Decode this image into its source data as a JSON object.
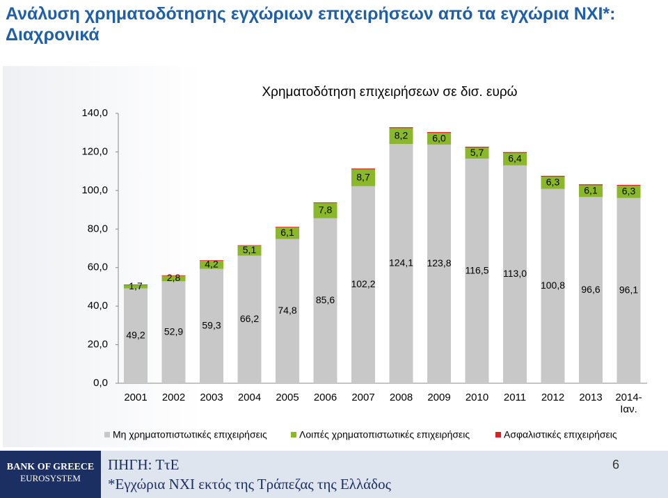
{
  "slide": {
    "title": [
      "Ανάλυση χρηματοδότησης εγχώριων επιχειρήσεων από τα εγχώρια ΝΧΙ*:",
      "Διαχρονικά"
    ]
  },
  "footer": {
    "bank": "BANK OF GREECE",
    "system": "EUROSYSTEM",
    "source": "ΠΗΓΗ: ΤτΕ",
    "note": "*Εγχώρια ΝΧΙ εκτός της Τράπεζας της Ελλάδος",
    "page": "6"
  },
  "chart_data": {
    "type": "stacked-bar",
    "title": "Χρηματοδότηση επιχειρήσεων σε δισ. ευρώ",
    "categories": [
      "2001",
      "2002",
      "2003",
      "2004",
      "2005",
      "2006",
      "2007",
      "2008",
      "2009",
      "2010",
      "2011",
      "2012",
      "2013",
      "2014-Ιαν."
    ],
    "series": [
      {
        "name": "Μη χρηματοπιστωτικές επιχειρήσεις",
        "color": "#c8c8c8",
        "values": [
          49.2,
          52.9,
          59.3,
          66.2,
          74.8,
          85.6,
          102.2,
          124.1,
          123.8,
          116.5,
          113.0,
          100.8,
          96.6,
          96.1
        ],
        "value_labels": [
          "49,2",
          "52,9",
          "59,3",
          "66,2",
          "74,8",
          "85,6",
          "102,2",
          "124,1",
          "123,8",
          "116,5",
          "113,0",
          "100,8",
          "96,6",
          "96,1"
        ]
      },
      {
        "name": "Λοιπές χρηματοπιστωτικές επιχειρήσεις",
        "color": "#8ab82a",
        "values": [
          1.7,
          2.8,
          4.2,
          5.1,
          6.1,
          7.8,
          8.7,
          8.2,
          6.0,
          5.7,
          6.4,
          6.3,
          6.1,
          6.3
        ],
        "value_labels": [
          "1,7",
          "2,8",
          "4,2",
          "5,1",
          "6,1",
          "7,8",
          "8,7",
          "8,2",
          "6,0",
          "5,7",
          "6,4",
          "6,3",
          "6,1",
          "6,3"
        ]
      },
      {
        "name": "Ασφαλιστικές επιχειρήσεις",
        "color": "#e02020",
        "values": [
          0.3,
          0.3,
          0.3,
          0.3,
          0.3,
          0.4,
          0.5,
          0.5,
          0.5,
          0.5,
          0.5,
          0.5,
          0.5,
          0.5
        ]
      }
    ],
    "ylim": [
      0,
      140
    ],
    "yticks": [
      {
        "value": 0,
        "label": "0,0"
      },
      {
        "value": 20,
        "label": "20,0"
      },
      {
        "value": 40,
        "label": "40,0"
      },
      {
        "value": 60,
        "label": "60,0"
      },
      {
        "value": 80,
        "label": "80,0"
      },
      {
        "value": 100,
        "label": "100,0"
      },
      {
        "value": 120,
        "label": "120,0"
      },
      {
        "value": 140,
        "label": "140,0"
      }
    ],
    "legend": "bottom"
  }
}
